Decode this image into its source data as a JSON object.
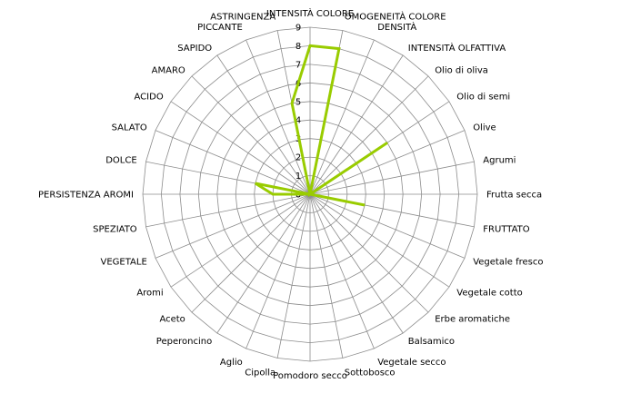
{
  "chart_data": {
    "type": "radar",
    "title": "",
    "grid": true,
    "legend": "none",
    "rmax": 9,
    "ticks": [
      "0",
      "1",
      "2",
      "3",
      "4",
      "5",
      "6",
      "7",
      "8",
      "9"
    ],
    "series_color": "#99cc00",
    "categories": [
      "INTENSITÀ COLORE",
      "OMOGENEITÀ COLORE",
      "DENSITÀ",
      "INTENSITÀ OLFATTIVA",
      "Olio di oliva",
      "Olio di semi",
      "Olive",
      "Agrumi",
      "Frutta secca",
      "FRUTTATO",
      "Vegetale fresco",
      "Vegetale cotto",
      "Erbe aromatiche",
      "Balsamico",
      "Vegetale secco",
      "Sottobosco",
      "Pomodoro secco",
      "Cipolla",
      "Aglio",
      "Peperoncino",
      "Aceto",
      "Aromi",
      "VEGETALE",
      "SPEZIATO",
      "PERSISTENZA AROMI",
      "DOLCE",
      "SALATO",
      "ACIDO",
      "AMARO",
      "SAPIDO",
      "PICCANTE",
      "ASTRINGENZA"
    ],
    "series": [
      {
        "values": [
          8,
          8,
          0,
          0,
          0,
          5,
          0,
          0,
          0,
          3,
          0,
          0,
          0,
          0,
          0,
          0,
          0,
          0,
          0,
          0,
          0,
          0,
          0,
          0,
          2,
          3,
          0,
          0,
          0,
          0,
          0,
          5
        ]
      }
    ]
  }
}
